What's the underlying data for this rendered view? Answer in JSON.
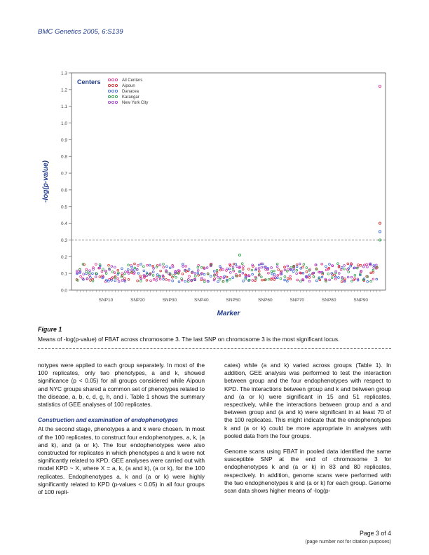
{
  "header": {
    "journal_ref": "BMC Genetics 2005, 6:S139"
  },
  "figure": {
    "label": "Figure 1",
    "title": "Means of -log(p-value) of FBAT across chromosome 3. The last SNP on chromosome 3 is the most significant locus."
  },
  "chart_data": {
    "type": "scatter",
    "xlabel": "Marker",
    "ylabel": "-log(p-value)",
    "ylim": [
      0,
      1.3
    ],
    "yticks": [
      0,
      0.1,
      0.2,
      0.3,
      0.4,
      0.5,
      0.6,
      0.7,
      0.8,
      0.9,
      1.0,
      1.1,
      1.2,
      1.3
    ],
    "x_tick_labels": [
      "SNP10",
      "SNP20",
      "SNP30",
      "SNP40",
      "SNP50",
      "SNP60",
      "SNP70",
      "SNP80",
      "SNP90"
    ],
    "n_markers": 96,
    "threshold_line": 0.3,
    "legend_title": "Centers",
    "legend": [
      {
        "name": "All Centers",
        "color": "#e0218a"
      },
      {
        "name": "Aipoun",
        "color": "#d11a1a"
      },
      {
        "name": "Danacea",
        "color": "#2a57d8"
      },
      {
        "name": "Karangar",
        "color": "#1f9a3c"
      },
      {
        "name": "New York City",
        "color": "#9b2fc8"
      }
    ],
    "highlight_points": [
      {
        "marker": 96,
        "value": 1.22,
        "series": "All Centers"
      },
      {
        "marker": 96,
        "value": 0.4,
        "series": "Aipoun"
      },
      {
        "marker": 96,
        "value": 0.35,
        "series": "Danacea"
      },
      {
        "marker": 96,
        "value": 0.3,
        "series": "Karangar"
      },
      {
        "marker": 52,
        "value": 0.21,
        "series": "Karangar"
      }
    ],
    "baseline_range": [
      0.05,
      0.16
    ],
    "grid": false
  },
  "body": {
    "left_p1": "notypes were applied to each group separately. In most of the 100 replicates, only two phenotypes, a and k, showed significance (p < 0.05) for all groups considered while Aipoun and NYC groups shared a common set of phenotypes related to the disease, a, b, c, d, g, h, and i. Table 1 shows the summary statistics of GEE analyses of 100 replicates.",
    "left_head": "Construction and examination of endophenotypes",
    "left_p2": "At the second stage, phenotypes a and k were chosen. In most of the 100 replicates, to construct four endophenotypes, a, k, (a and k), and (a or k). The four endophenotypes were also constructed for replicates in which phenotypes a and k were not significantly related to KPD. GEE analyses were carried out with model KPD ~ X, where X = a, k, (a and k), (a or k), for the 100 replicates. Endophenotypes a, k and (a or k) were highly significantly related to KPD (p-values < 0.05) in all four groups of 100 repli-",
    "right_p1": "cates) while (a and k) varied across groups (Table 1). In addition, GEE analysis was performed to test the interaction between group and the four endophenotypes with respect to KPD. The interactions between group and k and between group and (a or k) were significant in 15 and 51 replicates, respectively, while the interactions between group and a and between group and (a and k) were significant in at least 70 of the 100 replicates. This might indicate that the endophenotypes k and (a or k) could be more appropriate in analyses with pooled data from the four groups.",
    "right_p2": "Genome scans using FBAT in pooled data identified the same susceptible SNP at the end of chromosome 3 for endophenotypes k and (a or k) in 83 and 80 replicates, respectively. In addition, genome scans were performed with the two endophenotypes k and (a or k) for each group. Genome scan data shows higher means of -log(p-"
  },
  "footer": {
    "page": "Page 3 of 4",
    "note": "(page number not for citation purposes)"
  }
}
